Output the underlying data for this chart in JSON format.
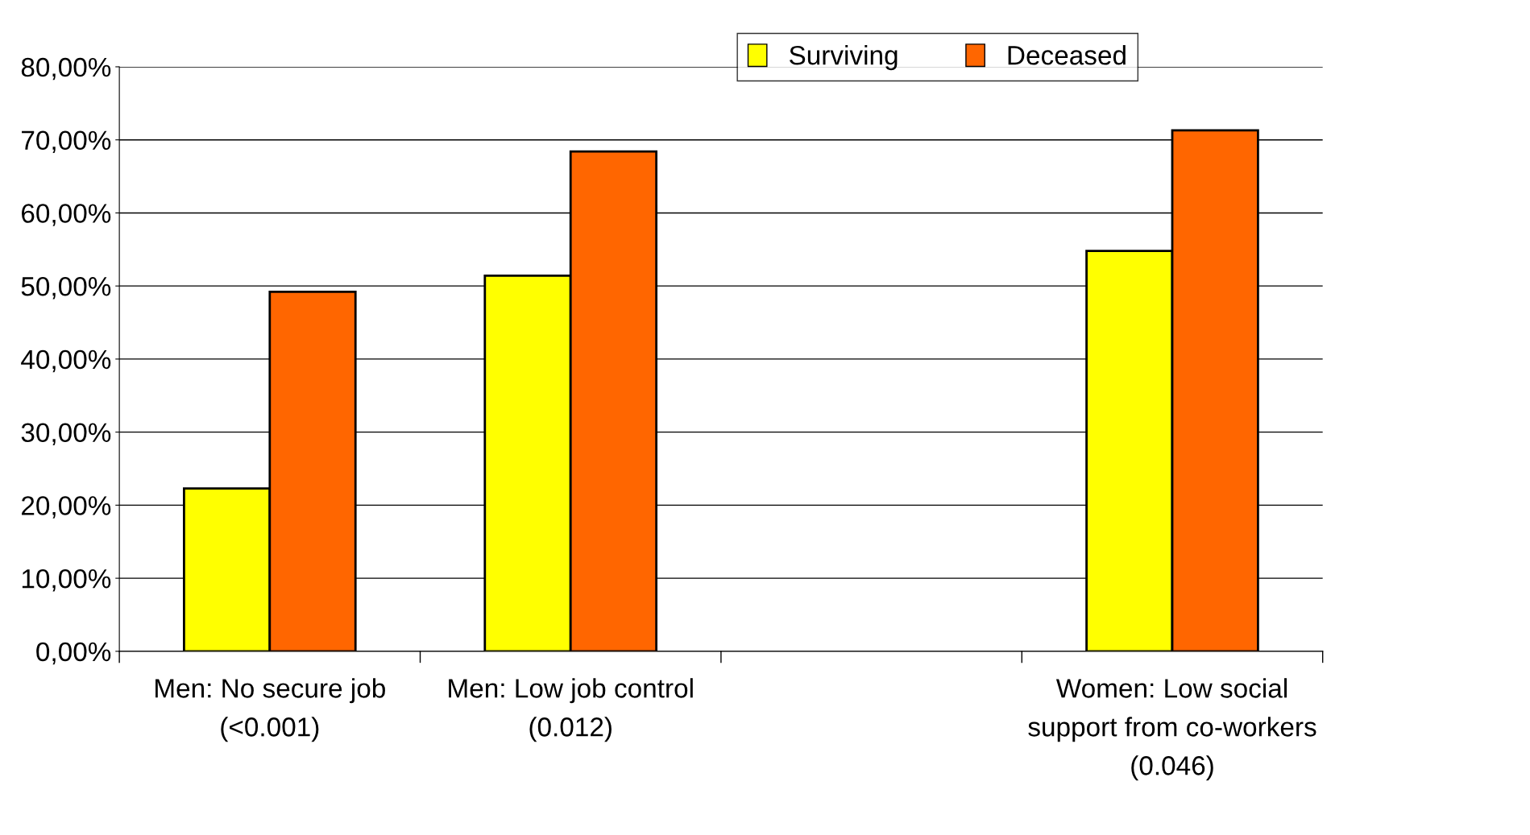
{
  "chart_data": {
    "type": "bar",
    "categories": [
      "Men: No secure job\n(<0.001)",
      "Men: Low job control\n(0.012)",
      null,
      "Women: Low social\nsupport from co-workers\n(0.046)"
    ],
    "series": [
      {
        "name": "Surviving",
        "color": "#ffff00",
        "values": [
          22.3,
          51.4,
          null,
          54.8
        ]
      },
      {
        "name": "Deceased",
        "color": "#ff6600",
        "values": [
          49.2,
          68.4,
          null,
          71.3
        ]
      }
    ],
    "ylim": [
      0,
      80
    ],
    "yticks": [
      {
        "value": 0,
        "label": "0,00%"
      },
      {
        "value": 10,
        "label": "10,00%"
      },
      {
        "value": 20,
        "label": "20,00%"
      },
      {
        "value": 30,
        "label": "30,00%"
      },
      {
        "value": 40,
        "label": "40,00%"
      },
      {
        "value": 50,
        "label": "50,00%"
      },
      {
        "value": 60,
        "label": "60,00%"
      },
      {
        "value": 70,
        "label": "70,00%"
      },
      {
        "value": 80,
        "label": "80,00%"
      }
    ],
    "grid": "y",
    "legend": "top"
  }
}
